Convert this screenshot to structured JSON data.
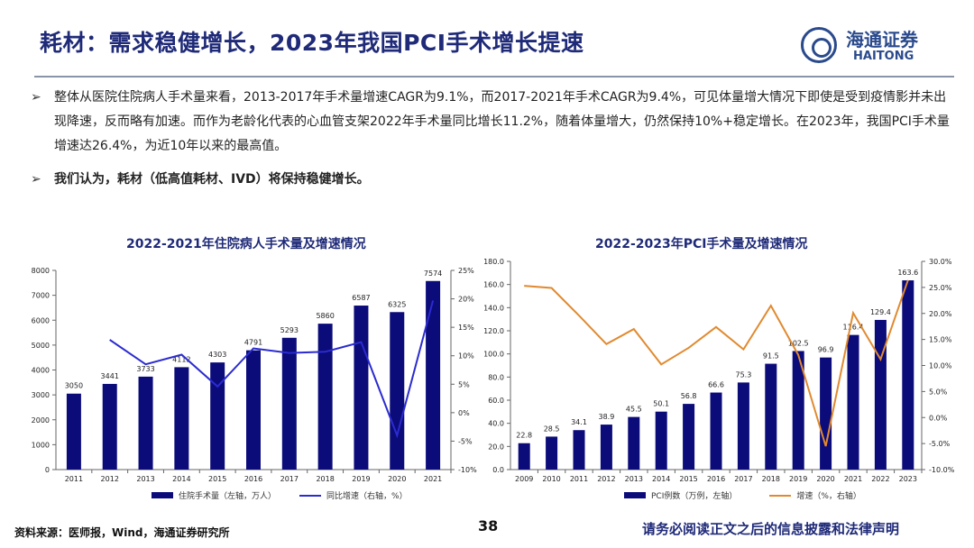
{
  "header": {
    "title": "耗材：需求稳健增长，2023年我国PCI手术增长提速",
    "logo_cn": "海通证券",
    "logo_en": "HAITONG"
  },
  "bullets": [
    "整体从医院住院病人手术量来看，2013-2017年手术量增速CAGR为9.1%，而2017-2021年手术CAGR为9.4%，可见体量增大情况下即使是受到疫情影并未出现降速，反而略有加速。而作为老龄化代表的心血管支架2022年手术量同比增长11.2%，随着体量增大，仍然保持10%+稳定增长。在2023年，我国PCI手术量增速达26.4%，为近10年以来的最高值。",
    "我们认为，耗材（低高值耗材、IVD）将保持稳健增长。"
  ],
  "bullet_marker": "➢",
  "footer": {
    "source": "资料来源：医师报，Wind，海通证券研究所",
    "page": "38",
    "disclaimer": "请务必阅读正文之后的信息披露和法律声明"
  },
  "colors": {
    "bar": "#0b0b7a",
    "line_left": "#2b2bd0",
    "line_right": "#e08a30",
    "title": "#1f2a78"
  },
  "chart_data": [
    {
      "type": "bar",
      "title": "2022-2021年住院病人手术量及增速情况",
      "categories": [
        "2011",
        "2012",
        "2013",
        "2014",
        "2015",
        "2016",
        "2017",
        "2018",
        "2019",
        "2020",
        "2021"
      ],
      "series": [
        {
          "name": "住院手术量（左轴，万人）",
          "axis": "left",
          "type": "bar",
          "values": [
            3050,
            3441,
            3733,
            4112,
            4303,
            4791,
            5293,
            5860,
            6587,
            6325,
            7574
          ]
        },
        {
          "name": "同比增速（右轴，%）",
          "axis": "right",
          "type": "line",
          "values": [
            null,
            12.8,
            8.5,
            10.2,
            4.6,
            11.3,
            10.5,
            10.7,
            12.4,
            -4.0,
            19.7
          ]
        }
      ],
      "ylim_left": [
        0,
        8000
      ],
      "yticks_left": [
        "0",
        "1000",
        "2000",
        "3000",
        "4000",
        "5000",
        "6000",
        "7000",
        "8000"
      ],
      "ylim_right": [
        -10,
        25
      ],
      "yticks_right": [
        "-10%",
        "-5%",
        "0%",
        "5%",
        "10%",
        "15%",
        "20%",
        "25%"
      ],
      "data_labels": [
        "3050",
        "3441",
        "3733",
        "4112",
        "4303",
        "4791",
        "5293",
        "5860",
        "6587",
        "6325",
        "7574"
      ],
      "legend": "bottom"
    },
    {
      "type": "bar",
      "title": "2022-2023年PCI手术量及增速情况",
      "categories": [
        "2009",
        "2010",
        "2011",
        "2012",
        "2013",
        "2014",
        "2015",
        "2016",
        "2017",
        "2018",
        "2019",
        "2020",
        "2021",
        "2022",
        "2023"
      ],
      "series": [
        {
          "name": "PCI例数（万例，左轴）",
          "axis": "left",
          "type": "bar",
          "values": [
            22.8,
            28.5,
            34.1,
            38.9,
            45.5,
            50.1,
            56.8,
            66.6,
            75.3,
            91.5,
            102.5,
            96.9,
            116.4,
            129.4,
            163.6
          ]
        },
        {
          "name": "增速（%，右轴）",
          "axis": "right",
          "type": "line",
          "values": [
            25.3,
            24.9,
            19.6,
            14.1,
            17.0,
            10.2,
            13.4,
            17.4,
            13.1,
            21.5,
            12.0,
            -5.5,
            20.1,
            11.2,
            26.4
          ]
        }
      ],
      "ylim_left": [
        0,
        180
      ],
      "yticks_left": [
        "0.0",
        "20.0",
        "40.0",
        "60.0",
        "80.0",
        "100.0",
        "120.0",
        "140.0",
        "160.0",
        "180.0"
      ],
      "ylim_right": [
        -10,
        30
      ],
      "yticks_right": [
        "-10.0%",
        "-5.0%",
        "0.0%",
        "5.0%",
        "10.0%",
        "15.0%",
        "20.0%",
        "25.0%",
        "30.0%"
      ],
      "data_labels": [
        "22.8",
        "28.5",
        "34.1",
        "38.9",
        "45.5",
        "50.1",
        "56.8",
        "66.6",
        "75.3",
        "91.5",
        "102.5",
        "96.9",
        "116.4",
        "129.4",
        "163.6"
      ],
      "legend": "bottom"
    }
  ]
}
